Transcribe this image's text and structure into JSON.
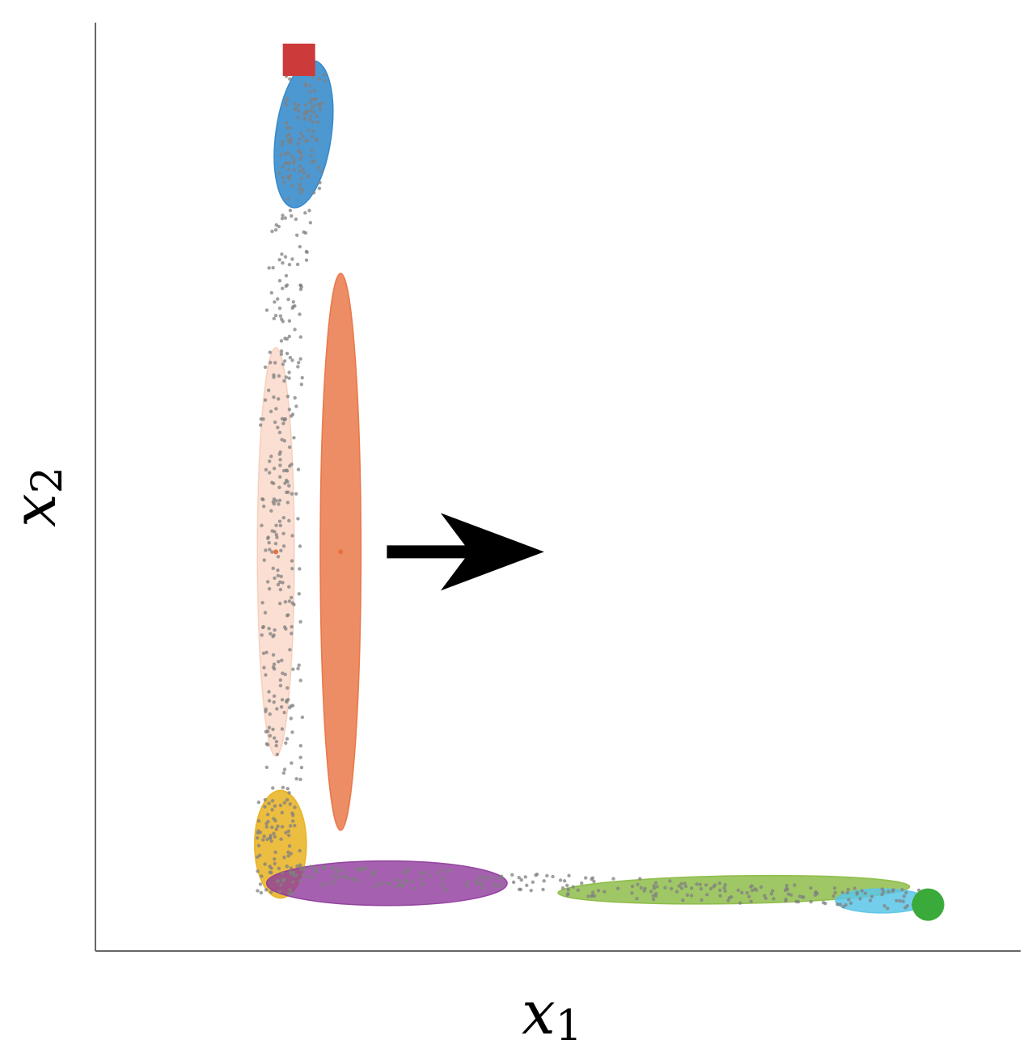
{
  "chart_data": {
    "type": "scatter",
    "title": "",
    "xlabel": {
      "main": "x",
      "sub": "1"
    },
    "ylabel": {
      "main": "x",
      "sub": "2"
    },
    "xlim": [
      0,
      100
    ],
    "ylim": [
      0,
      100
    ],
    "grid": false,
    "legend": "none",
    "start_marker": {
      "shape": "square",
      "x": 22,
      "y": 96,
      "color": "#cc3a3a"
    },
    "end_marker": {
      "shape": "circle",
      "x": 90,
      "y": 5,
      "color": "#3aaa3a"
    },
    "components": [
      {
        "name": "blue",
        "cx": 22.5,
        "cy": 88,
        "rx": 3,
        "ry": 8,
        "rotate": 8,
        "color": "#2f86c9",
        "opacity": 0.85
      },
      {
        "name": "faded-orange",
        "cx": 19.5,
        "cy": 43,
        "rx": 2,
        "ry": 22,
        "rotate": 0,
        "color": "#f4b89c",
        "opacity": 0.45
      },
      {
        "name": "orange",
        "cx": 26.5,
        "cy": 43,
        "rx": 2.2,
        "ry": 30,
        "rotate": 0,
        "color": "#e8703f",
        "opacity": 0.8
      },
      {
        "name": "yellow",
        "cx": 20,
        "cy": 11.5,
        "rx": 2.8,
        "ry": 5.8,
        "rotate": 0,
        "color": "#e8b21f",
        "opacity": 0.85
      },
      {
        "name": "purple",
        "cx": 31.5,
        "cy": 7.3,
        "rx": 13,
        "ry": 2.4,
        "rotate": 0,
        "color": "#8e3a9b",
        "opacity": 0.8
      },
      {
        "name": "green",
        "cx": 69,
        "cy": 6.6,
        "rx": 19,
        "ry": 1.5,
        "rotate": -1,
        "color": "#88b940",
        "opacity": 0.8
      },
      {
        "name": "cyan",
        "cx": 85,
        "cy": 5.4,
        "rx": 5,
        "ry": 1.3,
        "rotate": 0,
        "color": "#5bc5e8",
        "opacity": 0.85
      }
    ],
    "component_centers": [
      {
        "x": 19.5,
        "y": 43,
        "color": "#e8703f"
      },
      {
        "x": 26.5,
        "y": 43,
        "color": "#e8703f"
      }
    ],
    "arrow": {
      "x_from": 31.5,
      "x_to": 48.5,
      "y": 43,
      "color": "#000000"
    },
    "sample_color": "#808080"
  }
}
